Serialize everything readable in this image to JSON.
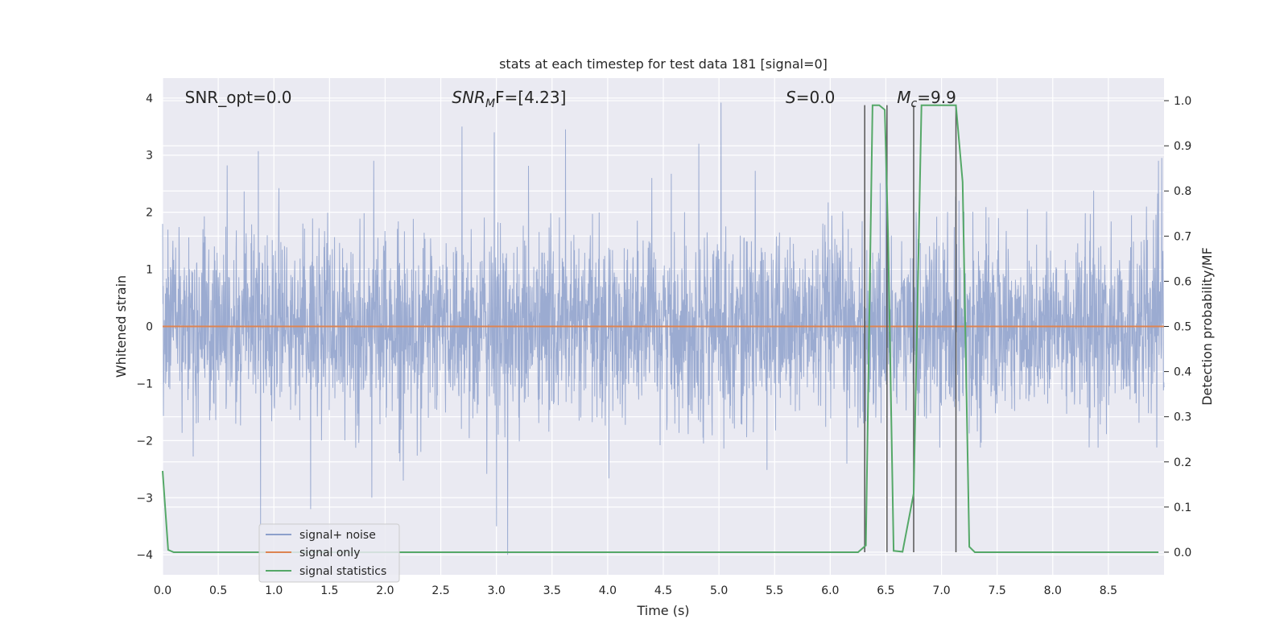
{
  "chart_data": {
    "type": "line",
    "title": "stats at each timestep for test data 181 [signal=0]",
    "xlabel": "Time (s)",
    "ylabel": "Whitened strain",
    "y2label": "Detection probability/MF",
    "xlim": [
      0.0,
      9.0
    ],
    "ylim": [
      -4.35,
      4.35
    ],
    "y2lim": [
      -0.05,
      1.05
    ],
    "xticks": [
      "0.0",
      "0.5",
      "1.0",
      "1.5",
      "2.0",
      "2.5",
      "3.0",
      "3.5",
      "4.0",
      "4.5",
      "5.0",
      "5.5",
      "6.0",
      "6.5",
      "7.0",
      "7.5",
      "8.0",
      "8.5"
    ],
    "yticks": [
      "4",
      "3",
      "2",
      "1",
      "0",
      "−1",
      "−2",
      "−3",
      "−4"
    ],
    "y2ticks": [
      "1.0",
      "0.9",
      "0.8",
      "0.7",
      "0.6",
      "0.5",
      "0.4",
      "0.3",
      "0.2",
      "0.1",
      "0.0"
    ],
    "grid": true,
    "legend_position": "lower-left",
    "annotations": {
      "snr_opt": "SNR_opt=0.0",
      "snr_mf_italic": "SNR",
      "snr_mf_sub": "M",
      "snr_mf_rest": "F=[4.23]",
      "s_italic": "S",
      "s_rest": "=0.0",
      "mc_italic": "M",
      "mc_sub": "c",
      "mc_rest": "=9.9"
    },
    "series": [
      {
        "name": "signal+ noise",
        "color": "#8da0cb",
        "description_stats": {
          "std": 0.8,
          "min": -4.0,
          "max": 3.92,
          "duration": 9.0
        },
        "peaks": [
          {
            "x": 0.58,
            "y": 2.82
          },
          {
            "x": 0.86,
            "y": 3.07
          },
          {
            "x": 0.88,
            "y": -3.5
          },
          {
            "x": 1.33,
            "y": -3.2
          },
          {
            "x": 1.88,
            "y": -3.0
          },
          {
            "x": 2.69,
            "y": 3.5
          },
          {
            "x": 2.98,
            "y": 3.4
          },
          {
            "x": 3.0,
            "y": -3.5
          },
          {
            "x": 3.1,
            "y": -4.0
          },
          {
            "x": 3.62,
            "y": 3.45
          },
          {
            "x": 4.82,
            "y": 3.2
          },
          {
            "x": 5.02,
            "y": 3.92
          },
          {
            "x": 6.5,
            "y": 3.1
          },
          {
            "x": 8.98,
            "y": 2.95
          }
        ]
      },
      {
        "name": "signal only",
        "color": "#dd8452",
        "x": [
          0.0,
          9.0
        ],
        "y": [
          0.0,
          0.0
        ]
      },
      {
        "name": "signal statistics",
        "color": "#55a868",
        "axis": "right",
        "x": [
          0.0,
          0.05,
          0.1,
          6.25,
          6.32,
          6.38,
          6.44,
          6.49,
          6.52,
          6.57,
          6.65,
          6.75,
          6.82,
          6.92,
          7.05,
          7.13,
          7.19,
          7.25,
          7.3,
          8.95
        ],
        "y": [
          0.18,
          0.005,
          0.0,
          0.0,
          0.015,
          0.99,
          0.99,
          0.98,
          0.7,
          0.003,
          0.001,
          0.13,
          0.99,
          0.99,
          0.99,
          0.99,
          0.82,
          0.012,
          0.0,
          0.0
        ]
      }
    ],
    "vlines": [
      {
        "x": 6.31,
        "y_top_right": 0.99
      },
      {
        "x": 6.51,
        "y_top_right": 0.99
      },
      {
        "x": 6.75,
        "y_top_right": 0.99
      },
      {
        "x": 7.13,
        "y_top_right": 0.99
      }
    ]
  }
}
